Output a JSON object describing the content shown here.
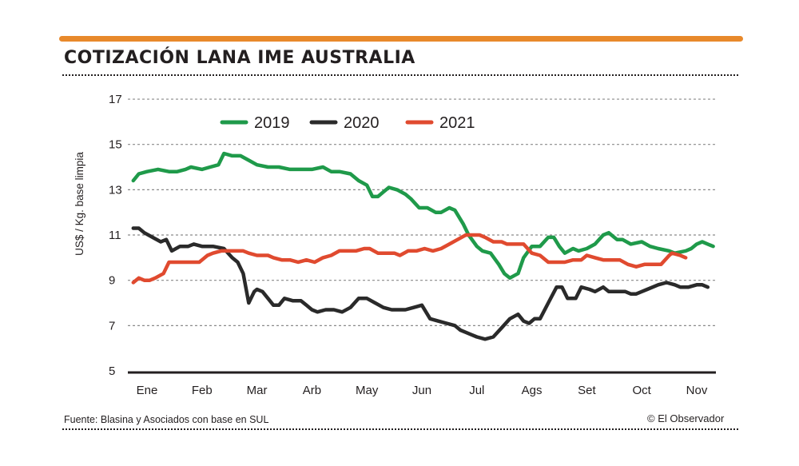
{
  "title": "COTIZACIÓN LANA IME AUSTRALIA",
  "source": "Fuente: Blasina y Asociados con base en SUL",
  "credit": "© El Observador",
  "colors": {
    "accent": "#e8892b",
    "2019": "#1f9a4a",
    "2020": "#2a2a2a",
    "2021": "#e04a2f"
  },
  "chart_data": {
    "type": "line",
    "title": "COTIZACIÓN LANA IME AUSTRALIA",
    "xlabel": "",
    "ylabel": "US$ / Kg. base limpia",
    "ylim": [
      5,
      17
    ],
    "yticks": [
      5,
      7,
      9,
      11,
      13,
      15,
      17
    ],
    "categories": [
      "Ene",
      "Feb",
      "Mar",
      "Arb",
      "May",
      "Jun",
      "Jul",
      "Ags",
      "Set",
      "Oct",
      "Nov"
    ],
    "xlim": [
      0,
      10.4
    ],
    "grid": true,
    "legend": "top-center",
    "series": [
      {
        "name": "2019",
        "color": "#1f9a4a",
        "x": [
          -0.25,
          -0.15,
          0,
          0.2,
          0.4,
          0.55,
          0.7,
          0.8,
          1,
          1.15,
          1.3,
          1.4,
          1.55,
          1.7,
          1.85,
          2,
          2.2,
          2.4,
          2.6,
          2.8,
          3,
          3.2,
          3.35,
          3.5,
          3.7,
          3.85,
          4,
          4.1,
          4.2,
          4.3,
          4.4,
          4.55,
          4.7,
          4.8,
          4.95,
          5.1,
          5.25,
          5.35,
          5.5,
          5.6,
          5.75,
          5.85,
          6,
          6.1,
          6.25,
          6.4,
          6.5,
          6.6,
          6.75,
          6.85,
          7,
          7.15,
          7.3,
          7.4,
          7.5,
          7.6,
          7.75,
          7.85,
          8,
          8.15,
          8.3,
          8.4,
          8.55,
          8.65,
          8.8,
          9,
          9.15,
          9.3,
          9.5,
          9.6,
          9.8,
          9.9,
          10,
          10.1,
          10.2,
          10.3
        ],
        "values": [
          13.4,
          13.7,
          13.8,
          13.9,
          13.8,
          13.8,
          13.9,
          14.0,
          13.9,
          14.0,
          14.1,
          14.6,
          14.5,
          14.5,
          14.3,
          14.1,
          14.0,
          14.0,
          13.9,
          13.9,
          13.9,
          14.0,
          13.8,
          13.8,
          13.7,
          13.4,
          13.2,
          12.7,
          12.7,
          12.9,
          13.1,
          13.0,
          12.8,
          12.6,
          12.2,
          12.2,
          12.0,
          12.0,
          12.2,
          12.1,
          11.5,
          11.0,
          10.5,
          10.3,
          10.2,
          9.7,
          9.3,
          9.1,
          9.3,
          10.0,
          10.5,
          10.5,
          10.9,
          10.9,
          10.5,
          10.2,
          10.4,
          10.3,
          10.4,
          10.6,
          11.0,
          11.1,
          10.8,
          10.8,
          10.6,
          10.7,
          10.5,
          10.4,
          10.3,
          10.2,
          10.3,
          10.4,
          10.6,
          10.7,
          10.6,
          10.5
        ]
      },
      {
        "name": "2020",
        "color": "#2a2a2a",
        "x": [
          -0.25,
          -0.15,
          -0.05,
          0.1,
          0.25,
          0.35,
          0.45,
          0.6,
          0.75,
          0.85,
          1,
          1.2,
          1.4,
          1.55,
          1.65,
          1.75,
          1.85,
          1.95,
          2,
          2.1,
          2.2,
          2.3,
          2.4,
          2.5,
          2.65,
          2.8,
          2.9,
          3,
          3.1,
          3.25,
          3.4,
          3.55,
          3.7,
          3.85,
          4,
          4.15,
          4.3,
          4.45,
          4.55,
          4.7,
          4.85,
          5,
          5.15,
          5.3,
          5.45,
          5.6,
          5.7,
          5.8,
          5.9,
          6,
          6.15,
          6.3,
          6.45,
          6.6,
          6.75,
          6.85,
          6.95,
          7.05,
          7.15,
          7.3,
          7.45,
          7.55,
          7.65,
          7.8,
          7.9,
          8.05,
          8.15,
          8.3,
          8.4,
          8.5,
          8.6,
          8.7,
          8.8,
          8.9,
          9,
          9.1,
          9.3,
          9.45,
          9.6,
          9.7,
          9.85,
          10,
          10.1,
          10.2
        ],
        "values": [
          11.3,
          11.3,
          11.1,
          10.9,
          10.7,
          10.8,
          10.3,
          10.5,
          10.5,
          10.6,
          10.5,
          10.5,
          10.4,
          10.0,
          9.8,
          9.3,
          8.0,
          8.5,
          8.6,
          8.5,
          8.2,
          7.9,
          7.9,
          8.2,
          8.1,
          8.1,
          7.9,
          7.7,
          7.6,
          7.7,
          7.7,
          7.6,
          7.8,
          8.2,
          8.2,
          8.0,
          7.8,
          7.7,
          7.7,
          7.7,
          7.8,
          7.9,
          7.3,
          7.2,
          7.1,
          7.0,
          6.8,
          6.7,
          6.6,
          6.5,
          6.4,
          6.5,
          6.9,
          7.3,
          7.5,
          7.2,
          7.1,
          7.3,
          7.3,
          8.0,
          8.7,
          8.7,
          8.2,
          8.2,
          8.7,
          8.6,
          8.5,
          8.7,
          8.5,
          8.5,
          8.5,
          8.5,
          8.4,
          8.4,
          8.5,
          8.6,
          8.8,
          8.9,
          8.8,
          8.7,
          8.7,
          8.8,
          8.8,
          8.7
        ]
      },
      {
        "name": "2021",
        "color": "#e04a2f",
        "x": [
          -0.25,
          -0.15,
          -0.05,
          0.05,
          0.15,
          0.3,
          0.4,
          0.55,
          0.7,
          0.85,
          0.95,
          1,
          1.1,
          1.2,
          1.35,
          1.5,
          1.65,
          1.75,
          1.85,
          2,
          2.1,
          2.2,
          2.3,
          2.45,
          2.6,
          2.75,
          2.9,
          3.05,
          3.2,
          3.35,
          3.5,
          3.65,
          3.8,
          3.95,
          4.05,
          4.2,
          4.35,
          4.5,
          4.6,
          4.75,
          4.9,
          5.05,
          5.2,
          5.35,
          5.5,
          5.65,
          5.8,
          5.95,
          6.05,
          6.15,
          6.3,
          6.45,
          6.55,
          6.65,
          6.75,
          6.85,
          7,
          7.15,
          7.3,
          7.45,
          7.6,
          7.75,
          7.9,
          8,
          8.15,
          8.3,
          8.45,
          8.6,
          8.75,
          8.9,
          9.05,
          9.2,
          9.35,
          9.5,
          9.55,
          9.7,
          9.8
        ],
        "values": [
          8.9,
          9.1,
          9.0,
          9.0,
          9.1,
          9.3,
          9.8,
          9.8,
          9.8,
          9.8,
          9.8,
          9.9,
          10.1,
          10.2,
          10.3,
          10.3,
          10.3,
          10.3,
          10.2,
          10.1,
          10.1,
          10.1,
          10.0,
          9.9,
          9.9,
          9.8,
          9.9,
          9.8,
          10.0,
          10.1,
          10.3,
          10.3,
          10.3,
          10.4,
          10.4,
          10.2,
          10.2,
          10.2,
          10.1,
          10.3,
          10.3,
          10.4,
          10.3,
          10.4,
          10.6,
          10.8,
          11.0,
          11.0,
          11.0,
          10.9,
          10.7,
          10.7,
          10.6,
          10.6,
          10.6,
          10.6,
          10.2,
          10.1,
          9.8,
          9.8,
          9.8,
          9.9,
          9.9,
          10.1,
          10.0,
          9.9,
          9.9,
          9.9,
          9.7,
          9.6,
          9.7,
          9.7,
          9.7,
          10.1,
          10.2,
          10.1,
          10.0
        ]
      }
    ]
  }
}
